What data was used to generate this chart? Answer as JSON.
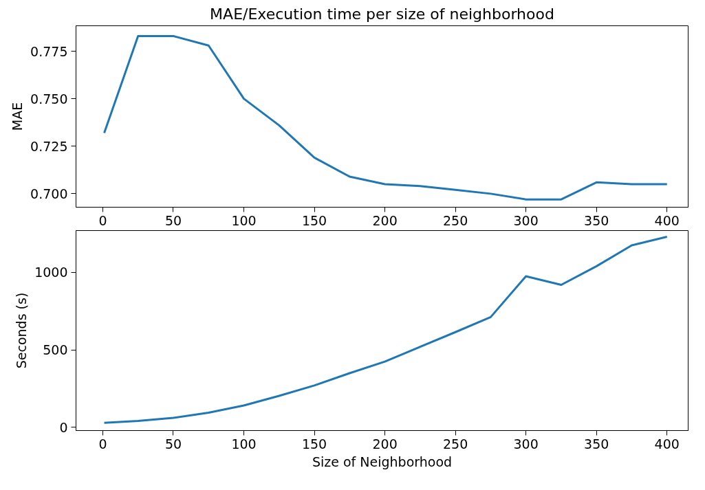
{
  "chart_data": [
    {
      "type": "line",
      "title": "MAE/Execution time per size of neighborhood",
      "ylabel": "MAE",
      "x": [
        1,
        25,
        50,
        75,
        100,
        125,
        150,
        175,
        200,
        225,
        250,
        275,
        300,
        325,
        350,
        375,
        400
      ],
      "series": [
        {
          "color": "#1f77b4",
          "values": [
            0.732,
            0.783,
            0.783,
            0.778,
            0.75,
            0.736,
            0.719,
            0.709,
            0.705,
            0.704,
            0.702,
            0.7,
            0.697,
            0.697,
            0.706,
            0.705,
            0.705
          ]
        }
      ],
      "xlim": [
        -19,
        415
      ],
      "xticks": [
        0,
        50,
        100,
        150,
        200,
        250,
        300,
        350,
        400
      ],
      "ylim": [
        0.6929,
        0.7884
      ],
      "yticks": [
        {
          "value": 0.7,
          "label": "0.700"
        },
        {
          "value": 0.725,
          "label": "0.725"
        },
        {
          "value": 0.75,
          "label": "0.750"
        },
        {
          "value": 0.775,
          "label": "0.775"
        }
      ],
      "grid": false
    },
    {
      "type": "line",
      "xlabel": "Size of Neighborhood",
      "ylabel": "Seconds (s)",
      "x": [
        1,
        25,
        50,
        75,
        100,
        125,
        150,
        175,
        200,
        225,
        250,
        275,
        300,
        325,
        350,
        375,
        400
      ],
      "series": [
        {
          "color": "#1f77b4",
          "values": [
            30,
            42,
            62,
            95,
            142,
            204,
            271,
            350,
            425,
            520,
            615,
            712,
            975,
            920,
            1040,
            1175,
            1230
          ]
        }
      ],
      "xlim": [
        -19,
        415
      ],
      "xticks": [
        0,
        50,
        100,
        150,
        200,
        250,
        300,
        350,
        400
      ],
      "ylim": [
        -20,
        1270
      ],
      "yticks": [
        0,
        500,
        1000
      ],
      "grid": false
    }
  ]
}
